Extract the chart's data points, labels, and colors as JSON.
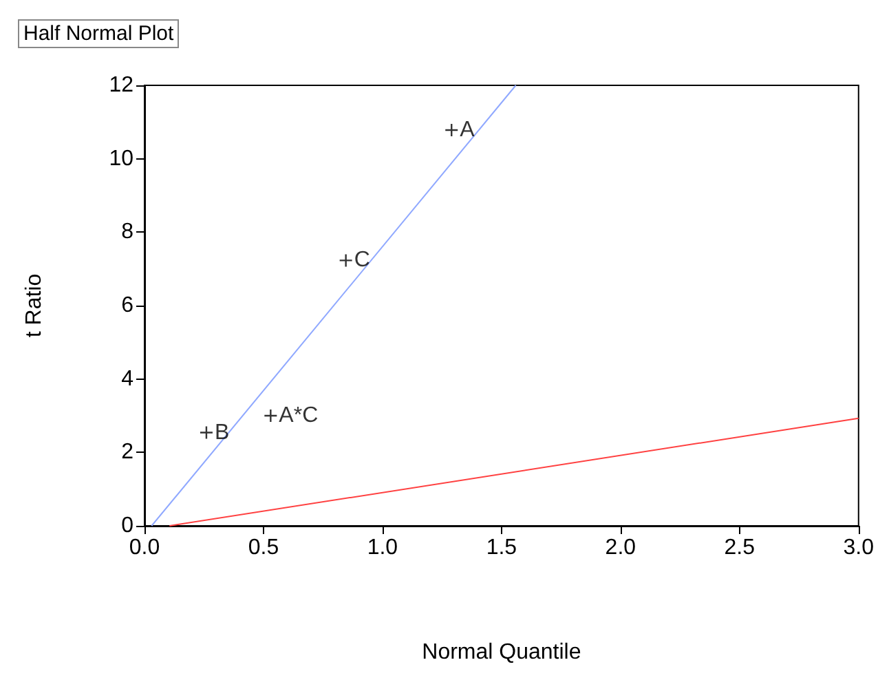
{
  "chart_data": {
    "type": "scatter",
    "title": "Half Normal Plot",
    "xlabel": "Normal Quantile",
    "ylabel": "t Ratio",
    "series": [
      {
        "color": "#000000",
        "marker": "cross",
        "x": [
          1.29,
          0.846,
          0.53,
          0.26
        ],
        "values": [
          10.78,
          7.23,
          3.0,
          2.54
        ]
      },
      {
        "type": "line",
        "color": "#8fa8ff",
        "x": [
          0.03,
          1.56
        ],
        "values": [
          0,
          12
        ]
      },
      {
        "type": "line",
        "color": "#ff4040",
        "x": [
          0.105,
          3.0
        ],
        "values": [
          0,
          2.93
        ]
      }
    ],
    "annotations": [
      {
        "text": "A",
        "x": 1.29,
        "y": 10.78
      },
      {
        "text": "C",
        "x": 0.846,
        "y": 7.23
      },
      {
        "text": "A*C",
        "x": 0.53,
        "y": 3.0
      },
      {
        "text": "B",
        "x": 0.26,
        "y": 2.54
      }
    ],
    "xlim": [
      0,
      3
    ],
    "ylim": [
      0,
      12
    ],
    "xticks": [
      {
        "value": 0,
        "label": "0.0"
      },
      0.5,
      {
        "value": 1,
        "label": "1.0"
      },
      1.5,
      {
        "value": 2,
        "label": "2.0"
      },
      2.5,
      {
        "value": 3,
        "label": "3.0"
      }
    ],
    "yticks": [
      0,
      2,
      4,
      6,
      8,
      10,
      12
    ],
    "line_style": "solid",
    "grid": false
  }
}
